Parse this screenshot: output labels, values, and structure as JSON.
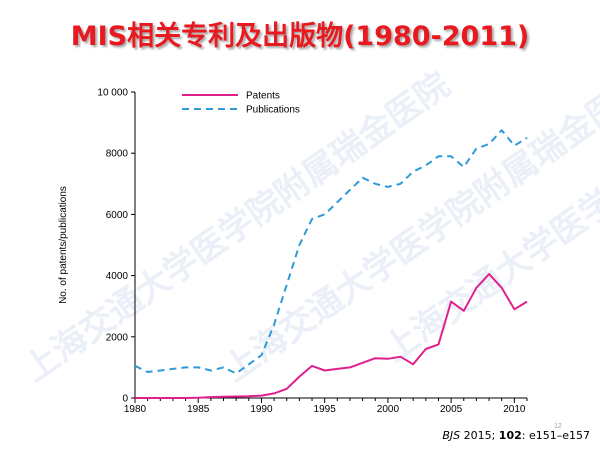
{
  "slide": {
    "title": "MIS相关专利及出版物(1980-2011)",
    "page_number": "12",
    "citation": {
      "journal": "BJS",
      "year": " 2015; ",
      "volume": "102",
      "pages": ": e151–e157"
    },
    "watermark_text": "上海交通大学医学院附属瑞金医院"
  },
  "chart_data": {
    "type": "line",
    "title": "",
    "xlabel": "",
    "ylabel": "No. of patents/publications",
    "xlim": [
      1980,
      2011
    ],
    "ylim": [
      0,
      10000
    ],
    "x_ticks": [
      1980,
      1985,
      1990,
      1995,
      2000,
      2005,
      2010
    ],
    "x_tick_labels": [
      "1980",
      "1985",
      "1990",
      "1995",
      "2000",
      "2005",
      "2010"
    ],
    "y_ticks": [
      0,
      2000,
      4000,
      6000,
      8000,
      10000
    ],
    "y_tick_labels": [
      "0",
      "2000",
      "4000",
      "6000",
      "8000",
      "10 000"
    ],
    "grid": false,
    "legend_position": "top-left",
    "series": [
      {
        "name": "Patents",
        "color": "#e0208c",
        "style": "solid",
        "x": [
          1980,
          1981,
          1982,
          1983,
          1984,
          1985,
          1986,
          1987,
          1988,
          1989,
          1990,
          1991,
          1992,
          1993,
          1994,
          1995,
          1996,
          1997,
          1998,
          1999,
          2000,
          2001,
          2002,
          2003,
          2004,
          2005,
          2006,
          2007,
          2008,
          2009,
          2010,
          2011
        ],
        "values": [
          0,
          0,
          0,
          0,
          0,
          10,
          30,
          40,
          50,
          60,
          80,
          150,
          300,
          700,
          1050,
          900,
          950,
          1000,
          1150,
          1300,
          1280,
          1350,
          1100,
          1600,
          1750,
          3150,
          2850,
          3600,
          4050,
          3600,
          2900,
          3150
        ]
      },
      {
        "name": "Publications",
        "color": "#2f9ad8",
        "style": "dashed",
        "x": [
          1980,
          1981,
          1982,
          1983,
          1984,
          1985,
          1986,
          1987,
          1988,
          1989,
          1990,
          1991,
          1992,
          1993,
          1994,
          1995,
          1996,
          1997,
          1998,
          1999,
          2000,
          2001,
          2002,
          2003,
          2004,
          2005,
          2006,
          2007,
          2008,
          2009,
          2010,
          2011
        ],
        "values": [
          1050,
          850,
          900,
          950,
          1000,
          1000,
          900,
          1000,
          800,
          1100,
          1400,
          2400,
          3700,
          5000,
          5850,
          6000,
          6400,
          6800,
          7200,
          7000,
          6900,
          7000,
          7400,
          7600,
          7900,
          7900,
          7550,
          8150,
          8300,
          8750,
          8250,
          8500
        ]
      }
    ]
  }
}
